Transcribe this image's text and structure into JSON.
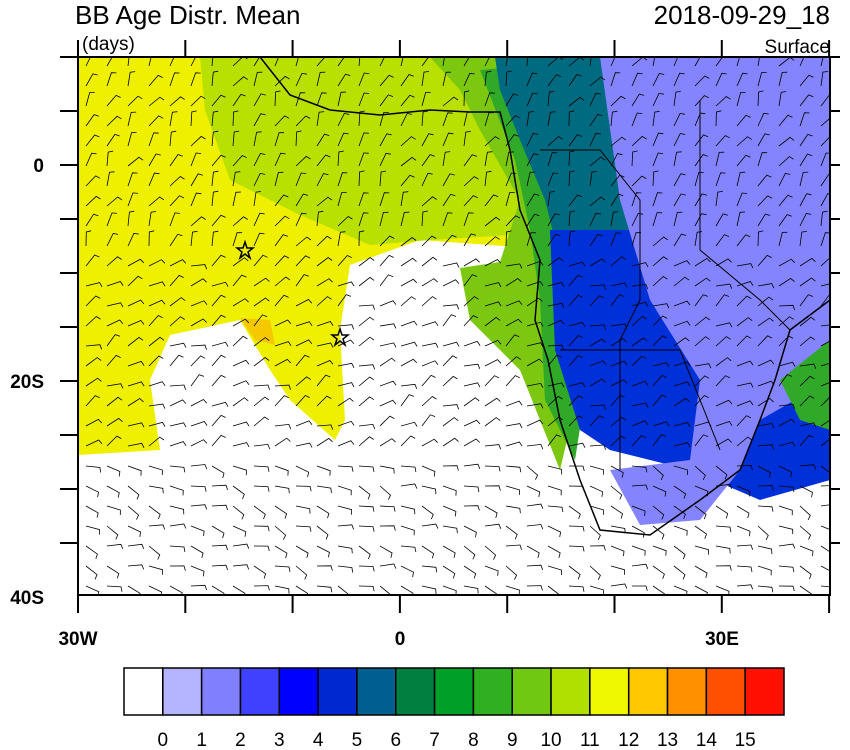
{
  "title": "BB Age Distr. Mean",
  "units": "(days)",
  "valid_time": "2018-09-29_18",
  "level": "Surface",
  "lat_labels": [
    "0",
    "20S",
    "40S"
  ],
  "lon_labels": [
    "30W",
    "0",
    "30E"
  ],
  "colorbar": {
    "levels": [
      0,
      1,
      2,
      3,
      4,
      5,
      6,
      7,
      8,
      9,
      10,
      11,
      12,
      13,
      14,
      15
    ],
    "colors": [
      "#ffffff",
      "#b4b4ff",
      "#8080ff",
      "#4040ff",
      "#0000ff",
      "#0028d0",
      "#005f8f",
      "#008040",
      "#00a028",
      "#30b020",
      "#70c810",
      "#b0e000",
      "#f0f800",
      "#ffc800",
      "#ff9000",
      "#ff5000",
      "#ff1000"
    ]
  }
}
